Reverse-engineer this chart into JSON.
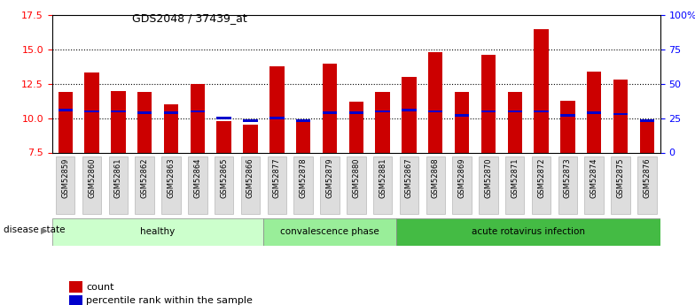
{
  "title": "GDS2048 / 37439_at",
  "samples": [
    "GSM52859",
    "GSM52860",
    "GSM52861",
    "GSM52862",
    "GSM52863",
    "GSM52864",
    "GSM52865",
    "GSM52866",
    "GSM52877",
    "GSM52878",
    "GSM52879",
    "GSM52880",
    "GSM52881",
    "GSM52867",
    "GSM52868",
    "GSM52869",
    "GSM52870",
    "GSM52871",
    "GSM52872",
    "GSM52873",
    "GSM52874",
    "GSM52875",
    "GSM52876"
  ],
  "count_values": [
    11.9,
    13.3,
    12.0,
    11.9,
    11.0,
    12.5,
    9.8,
    9.5,
    13.8,
    9.7,
    14.0,
    11.2,
    11.9,
    13.0,
    14.8,
    11.9,
    14.6,
    11.9,
    16.5,
    11.3,
    13.4,
    12.8,
    9.8
  ],
  "percentile_values": [
    10.6,
    10.5,
    10.5,
    10.4,
    10.4,
    10.5,
    10.0,
    9.8,
    10.0,
    9.8,
    10.4,
    10.4,
    10.5,
    10.6,
    10.5,
    10.2,
    10.5,
    10.5,
    10.5,
    10.2,
    10.4,
    10.3,
    9.8
  ],
  "groups": [
    {
      "label": "healthy",
      "start": 0,
      "end": 8,
      "color": "#ccffcc"
    },
    {
      "label": "convalescence phase",
      "start": 8,
      "end": 13,
      "color": "#99ee99"
    },
    {
      "label": "acute rotavirus infection",
      "start": 13,
      "end": 23,
      "color": "#44bb44"
    }
  ],
  "bar_color": "#cc0000",
  "percentile_color": "#0000cc",
  "ylim_left": [
    7.5,
    17.5
  ],
  "yticks_left": [
    7.5,
    10.0,
    12.5,
    15.0,
    17.5
  ],
  "yticks_right": [
    0,
    25,
    50,
    75,
    100
  ],
  "ytick_right_labels": [
    "0",
    "25",
    "50",
    "75",
    "100%"
  ],
  "grid_values": [
    10.0,
    12.5,
    15.0
  ],
  "bar_width": 0.55,
  "disease_state_label": "disease state",
  "legend_count_label": "count",
  "legend_pct_label": "percentile rank within the sample",
  "bg_color": "white",
  "ticklabel_bg": "#dddddd"
}
